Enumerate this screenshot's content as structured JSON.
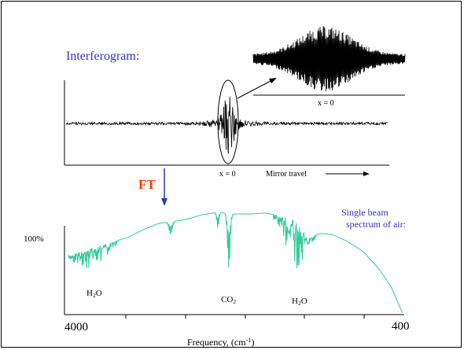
{
  "interferogram": {
    "title": "Interferogram:",
    "x0_inset_label": "x = 0",
    "x0_label": "x = 0",
    "mirror_travel_label": "Mirror travel"
  },
  "transform": {
    "label": "FT"
  },
  "spectrum": {
    "label_line1": "Single beam",
    "label_line2": "spectrum of air:",
    "y_label": "100%",
    "h2o_left": {
      "base": "H",
      "sub": "2",
      "rest": "O"
    },
    "co2": {
      "base": "CO",
      "sub": "2"
    },
    "h2o_right": {
      "base": "H",
      "sub": "2",
      "rest": "O"
    },
    "x_tick_left": "4000",
    "x_tick_right": "400",
    "x_axis": {
      "base": "Frequency, (cm",
      "sup": "-1",
      "close": ")"
    }
  },
  "colors": {
    "title_text": "#3333cc",
    "ft_text": "#ff3300",
    "ft_arrow": "#3333cc",
    "spectrum_line": "#33cc99",
    "signal": "#000000"
  }
}
